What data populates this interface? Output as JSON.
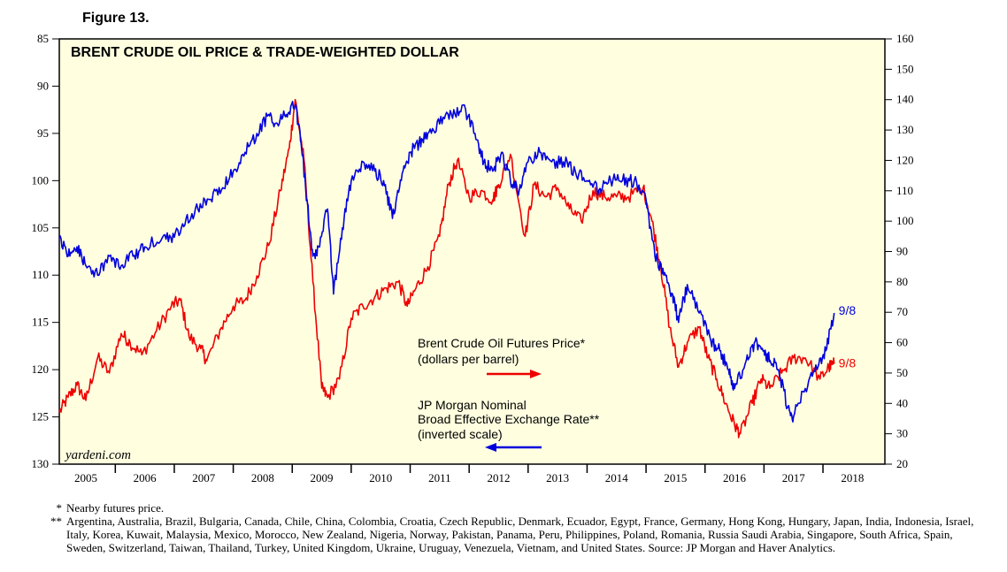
{
  "figure_label": "Figure 13.",
  "chart_data": {
    "type": "line",
    "title": "BRENT CRUDE OIL PRICE & TRADE-WEIGHTED DOLLAR",
    "watermark": "yardeni.com",
    "x_range": [
      2004.55,
      2018.55
    ],
    "x_tick_labels": [
      "2005",
      "2006",
      "2007",
      "2008",
      "2009",
      "2010",
      "2011",
      "2012",
      "2013",
      "2014",
      "2015",
      "2016",
      "2017",
      "2018"
    ],
    "left_axis": {
      "inverted": true,
      "range": [
        85,
        130
      ],
      "tick_labels": [
        "85",
        "90",
        "95",
        "100",
        "105",
        "110",
        "115",
        "120",
        "125",
        "130"
      ]
    },
    "right_axis": {
      "range": [
        20,
        160
      ],
      "tick_labels": [
        "20",
        "30",
        "40",
        "50",
        "60",
        "70",
        "80",
        "90",
        "100",
        "110",
        "120",
        "130",
        "140",
        "150",
        "160"
      ]
    },
    "series": [
      {
        "name": "Brent Crude Oil Futures Price*",
        "sub": "(dollars per barrel)",
        "axis": "right",
        "color": "#ee0000",
        "end_label": "9/8",
        "x": [
          2004.55,
          2004.7,
          2004.85,
          2005.0,
          2005.2,
          2005.4,
          2005.6,
          2005.75,
          2005.95,
          2006.2,
          2006.45,
          2006.6,
          2006.75,
          2006.95,
          2007.05,
          2007.3,
          2007.5,
          2007.7,
          2007.9,
          2008.1,
          2008.3,
          2008.45,
          2008.55,
          2008.7,
          2008.85,
          2009.0,
          2009.1,
          2009.3,
          2009.5,
          2009.7,
          2009.9,
          2010.1,
          2010.3,
          2010.45,
          2010.6,
          2010.8,
          2011.0,
          2011.15,
          2011.3,
          2011.5,
          2011.7,
          2011.9,
          2012.0,
          2012.2,
          2012.45,
          2012.6,
          2012.8,
          2013.0,
          2013.2,
          2013.4,
          2013.6,
          2013.8,
          2014.0,
          2014.2,
          2014.45,
          2014.6,
          2014.75,
          2014.9,
          2015.05,
          2015.2,
          2015.4,
          2015.55,
          2015.7,
          2015.85,
          2016.0,
          2016.1,
          2016.3,
          2016.45,
          2016.6,
          2016.8,
          2017.0,
          2017.2,
          2017.45,
          2017.6,
          2017.69
        ],
        "values": [
          37,
          42,
          46,
          41,
          55,
          50,
          63,
          60,
          56,
          64,
          72,
          74,
          62,
          58,
          54,
          65,
          72,
          74,
          82,
          92,
          110,
          124,
          140,
          120,
          80,
          45,
          42,
          48,
          68,
          72,
          75,
          78,
          80,
          72,
          78,
          85,
          95,
          112,
          120,
          108,
          110,
          107,
          112,
          122,
          95,
          112,
          108,
          111,
          104,
          100,
          110,
          108,
          108,
          108,
          111,
          100,
          85,
          65,
          52,
          60,
          65,
          55,
          48,
          40,
          33,
          30,
          40,
          48,
          45,
          50,
          55,
          55,
          48,
          52,
          53
        ]
      },
      {
        "name": "JP Morgan Nominal Broad Effective Exchange Rate**",
        "sub": "(inverted scale)",
        "line1": "JP Morgan Nominal",
        "line2": "Broad Effective Exchange Rate**",
        "axis": "left",
        "color": "#0000dd",
        "end_label": "9/8",
        "x": [
          2004.55,
          2004.7,
          2004.85,
          2005.0,
          2005.2,
          2005.4,
          2005.6,
          2005.8,
          2006.0,
          2006.3,
          2006.5,
          2006.7,
          2006.9,
          2007.1,
          2007.3,
          2007.5,
          2007.7,
          2007.9,
          2008.1,
          2008.25,
          2008.4,
          2008.55,
          2008.65,
          2008.75,
          2008.85,
          2008.95,
          2009.1,
          2009.2,
          2009.35,
          2009.5,
          2009.7,
          2009.9,
          2010.05,
          2010.2,
          2010.35,
          2010.5,
          2010.65,
          2010.8,
          2011.0,
          2011.2,
          2011.4,
          2011.6,
          2011.75,
          2011.9,
          2012.05,
          2012.2,
          2012.35,
          2012.5,
          2012.7,
          2012.9,
          2013.1,
          2013.3,
          2013.5,
          2013.7,
          2013.9,
          2014.1,
          2014.3,
          2014.5,
          2014.65,
          2014.8,
          2014.95,
          2015.05,
          2015.2,
          2015.4,
          2015.6,
          2015.75,
          2015.9,
          2016.0,
          2016.2,
          2016.35,
          2016.5,
          2016.6,
          2016.75,
          2016.9,
          2017.0,
          2017.2,
          2017.4,
          2017.55,
          2017.69
        ],
        "values": [
          106,
          108,
          107,
          109,
          110,
          108,
          109,
          108,
          107,
          106,
          106,
          104,
          103,
          102,
          101,
          99,
          97,
          95,
          93,
          94,
          93,
          92,
          96,
          102,
          108,
          107,
          103,
          112,
          105,
          100,
          98,
          99,
          100,
          104,
          100,
          97,
          96,
          95,
          94,
          93,
          92,
          95,
          98,
          99,
          97,
          100,
          101,
          98,
          97,
          98,
          98,
          99,
          100,
          101,
          100,
          100,
          100,
          102,
          108,
          110,
          112,
          115,
          111,
          114,
          117,
          118,
          120,
          122,
          119,
          117,
          118,
          119,
          120,
          124,
          125,
          122,
          120,
          118,
          114
        ]
      }
    ]
  },
  "legend": {
    "brent_line1": "Brent Crude Oil Futures Price*",
    "brent_line2": "(dollars per barrel)",
    "jpm_line1": "JP Morgan Nominal",
    "jpm_line2": "Broad Effective Exchange Rate**",
    "jpm_line3": "(inverted scale)"
  },
  "footnotes": {
    "mark1": "*",
    "text1": "Nearby futures price.",
    "mark2": "**",
    "text2": "Argentina, Australia, Brazil, Bulgaria, Canada, Chile, China, Colombia, Croatia, Czech Republic, Denmark, Ecuador, Egypt, France, Germany, Hong Kong, Hungary, Japan, India, Indonesia, Israel, Italy, Korea, Kuwait, Malaysia, Mexico, Morocco, New Zealand, Nigeria, Norway, Pakistan, Panama, Peru, Philippines, Poland, Romania, Russia Saudi Arabia, Singapore, South Africa, Spain, Sweden, Switzerland, Taiwan, Thailand, Turkey, United Kingdom, Ukraine, Uruguay, Venezuela, Vietnam, and United States. Source: JP Morgan and Haver Analytics."
  }
}
